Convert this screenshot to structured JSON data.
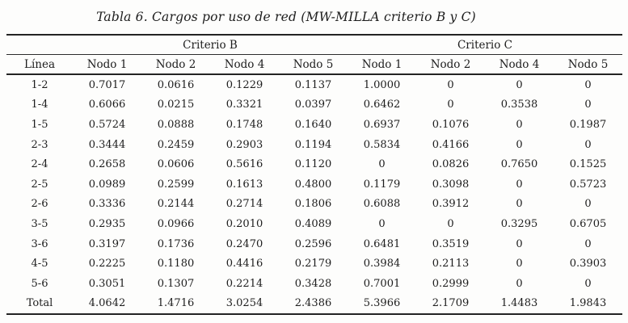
{
  "title": "Tabla 6. Cargos por uso de red (MW-MILLA criterio B y C)",
  "table": {
    "groups": [
      {
        "label": "Criterio B",
        "span": 4
      },
      {
        "label": "Criterio C",
        "span": 4
      }
    ],
    "line_header": "Línea",
    "columns": [
      "Nodo 1",
      "Nodo 2",
      "Nodo 4",
      "Nodo 5",
      "Nodo 1",
      "Nodo 2",
      "Nodo 4",
      "Nodo 5"
    ],
    "rows": [
      {
        "label": "1-2",
        "values": [
          "0.7017",
          "0.0616",
          "0.1229",
          "0.1137",
          "1.0000",
          "0",
          "0",
          "0"
        ]
      },
      {
        "label": "1-4",
        "values": [
          "0.6066",
          "0.0215",
          "0.3321",
          "0.0397",
          "0.6462",
          "0",
          "0.3538",
          "0"
        ]
      },
      {
        "label": "1-5",
        "values": [
          "0.5724",
          "0.0888",
          "0.1748",
          "0.1640",
          "0.6937",
          "0.1076",
          "0",
          "0.1987"
        ]
      },
      {
        "label": "2-3",
        "values": [
          "0.3444",
          "0.2459",
          "0.2903",
          "0.1194",
          "0.5834",
          "0.4166",
          "0",
          "0"
        ]
      },
      {
        "label": "2-4",
        "values": [
          "0.2658",
          "0.0606",
          "0.5616",
          "0.1120",
          "0",
          "0.0826",
          "0.7650",
          "0.1525"
        ]
      },
      {
        "label": "2-5",
        "values": [
          "0.0989",
          "0.2599",
          "0.1613",
          "0.4800",
          "0.1179",
          "0.3098",
          "0",
          "0.5723"
        ]
      },
      {
        "label": "2-6",
        "values": [
          "0.3336",
          "0.2144",
          "0.2714",
          "0.1806",
          "0.6088",
          "0.3912",
          "0",
          "0"
        ]
      },
      {
        "label": "3-5",
        "values": [
          "0.2935",
          "0.0966",
          "0.2010",
          "0.4089",
          "0",
          "0",
          "0.3295",
          "0.6705"
        ]
      },
      {
        "label": "3-6",
        "values": [
          "0.3197",
          "0.1736",
          "0.2470",
          "0.2596",
          "0.6481",
          "0.3519",
          "0",
          "0"
        ]
      },
      {
        "label": "4-5",
        "values": [
          "0.2225",
          "0.1180",
          "0.4416",
          "0.2179",
          "0.3984",
          "0.2113",
          "0",
          "0.3903"
        ]
      },
      {
        "label": "5-6",
        "values": [
          "0.3051",
          "0.1307",
          "0.2214",
          "0.3428",
          "0.7001",
          "0.2999",
          "0",
          "0"
        ]
      }
    ],
    "total": {
      "label": "Total",
      "values": [
        "4.0642",
        "1.4716",
        "3.0254",
        "2.4386",
        "5.3966",
        "2.1709",
        "1.4483",
        "1.9843"
      ]
    }
  },
  "colors": {
    "background": "#fdfdfc",
    "text": "#1d1d1d",
    "rule": "#232323"
  }
}
